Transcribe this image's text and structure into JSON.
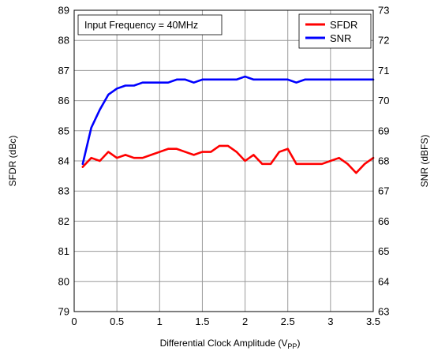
{
  "chart_data": {
    "type": "line",
    "title": "",
    "annotation": "Input Frequency = 40MHz",
    "xlabel": {
      "main": "Differential Clock Amplitude (V",
      "sub": "PP",
      "close": ")"
    },
    "ylabel_left": "SFDR (dBc)",
    "ylabel_right": "SNR (dBFS)",
    "xlim": [
      0,
      3.5
    ],
    "ylim_left": [
      79,
      89
    ],
    "ylim_right": [
      63,
      73
    ],
    "x_ticks": [
      "0",
      "0.5",
      "1",
      "1.5",
      "2",
      "2.5",
      "3",
      "3.5"
    ],
    "y_left_ticks": [
      "79",
      "80",
      "81",
      "82",
      "83",
      "84",
      "85",
      "86",
      "87",
      "88",
      "89"
    ],
    "y_right_ticks": [
      "63",
      "64",
      "65",
      "66",
      "67",
      "68",
      "69",
      "70",
      "71",
      "72",
      "73"
    ],
    "grid": true,
    "legend_position": "top-right",
    "series": [
      {
        "name": "SFDR",
        "axis": "left",
        "color": "#ff0000",
        "x": [
          0.1,
          0.2,
          0.3,
          0.4,
          0.5,
          0.6,
          0.7,
          0.8,
          0.9,
          1.0,
          1.1,
          1.2,
          1.3,
          1.4,
          1.5,
          1.6,
          1.7,
          1.8,
          1.9,
          2.0,
          2.1,
          2.2,
          2.3,
          2.4,
          2.5,
          2.6,
          2.7,
          2.8,
          2.9,
          3.0,
          3.1,
          3.2,
          3.3,
          3.4,
          3.5
        ],
        "values": [
          83.8,
          84.1,
          84.0,
          84.3,
          84.1,
          84.2,
          84.1,
          84.1,
          84.2,
          84.3,
          84.4,
          84.4,
          84.3,
          84.2,
          84.3,
          84.3,
          84.5,
          84.5,
          84.3,
          84.0,
          84.2,
          83.9,
          83.9,
          84.3,
          84.4,
          83.9,
          83.9,
          83.9,
          83.9,
          84.0,
          84.1,
          83.9,
          83.6,
          83.9,
          84.1
        ]
      },
      {
        "name": "SNR",
        "axis": "right",
        "color": "#0000ff",
        "x": [
          0.1,
          0.2,
          0.3,
          0.4,
          0.5,
          0.6,
          0.7,
          0.8,
          0.9,
          1.0,
          1.1,
          1.2,
          1.3,
          1.4,
          1.5,
          1.6,
          1.7,
          1.8,
          1.9,
          2.0,
          2.1,
          2.2,
          2.3,
          2.4,
          2.5,
          2.6,
          2.7,
          2.8,
          2.9,
          3.0,
          3.1,
          3.2,
          3.3,
          3.4,
          3.5
        ],
        "values": [
          67.9,
          69.1,
          69.7,
          70.2,
          70.4,
          70.5,
          70.5,
          70.6,
          70.6,
          70.6,
          70.6,
          70.7,
          70.7,
          70.6,
          70.7,
          70.7,
          70.7,
          70.7,
          70.7,
          70.8,
          70.7,
          70.7,
          70.7,
          70.7,
          70.7,
          70.6,
          70.7,
          70.7,
          70.7,
          70.7,
          70.7,
          70.7,
          70.7,
          70.7,
          70.7
        ]
      }
    ]
  }
}
